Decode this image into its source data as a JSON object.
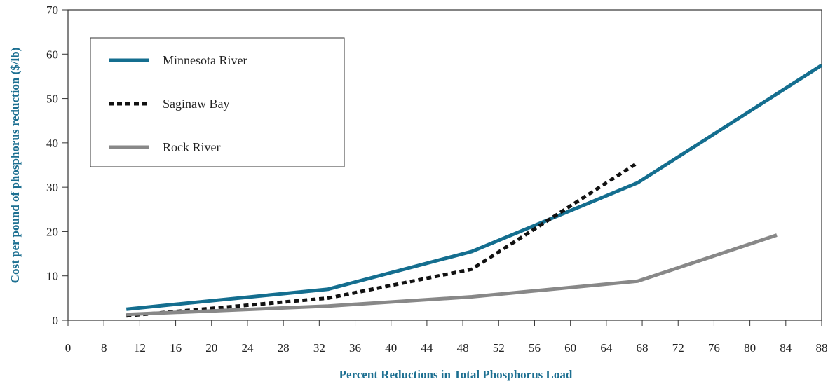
{
  "chart_data": {
    "type": "line",
    "title": "",
    "xlabel": "Percent Reductions in Total Phosphorus Load",
    "ylabel": "Cost per pound of phosphorus reduction ($/lb)",
    "x_ticks": [
      "0",
      "8",
      "12",
      "16",
      "20",
      "24",
      "28",
      "32",
      "36",
      "40",
      "44",
      "48",
      "52",
      "56",
      "60",
      "64",
      "68",
      "72",
      "76",
      "80",
      "84",
      "88"
    ],
    "y_ticks": [
      "0",
      "10",
      "20",
      "30",
      "40",
      "50",
      "60",
      "70"
    ],
    "ylim": [
      0,
      70
    ],
    "grid": false,
    "legend_position": "top-left",
    "colors": {
      "axis_title": "#1c6f91",
      "axis": "#333333"
    },
    "series": [
      {
        "name": "Minnesota River",
        "color": "#146e8f",
        "style": "solid",
        "points": [
          [
            10.5,
            2.5
          ],
          [
            33,
            7
          ],
          [
            49,
            15.5
          ],
          [
            67.5,
            31
          ],
          [
            88,
            57.5
          ]
        ]
      },
      {
        "name": "Saginaw Bay",
        "color": "#111111",
        "style": "dashed",
        "points": [
          [
            10.5,
            1
          ],
          [
            33,
            5
          ],
          [
            49,
            11.5
          ],
          [
            67.5,
            35.5
          ]
        ]
      },
      {
        "name": "Rock River",
        "color": "#888888",
        "style": "solid",
        "points": [
          [
            10.5,
            1.3
          ],
          [
            33,
            3.2
          ],
          [
            49,
            5.3
          ],
          [
            67.5,
            8.8
          ],
          [
            83,
            19.2
          ]
        ]
      }
    ]
  }
}
